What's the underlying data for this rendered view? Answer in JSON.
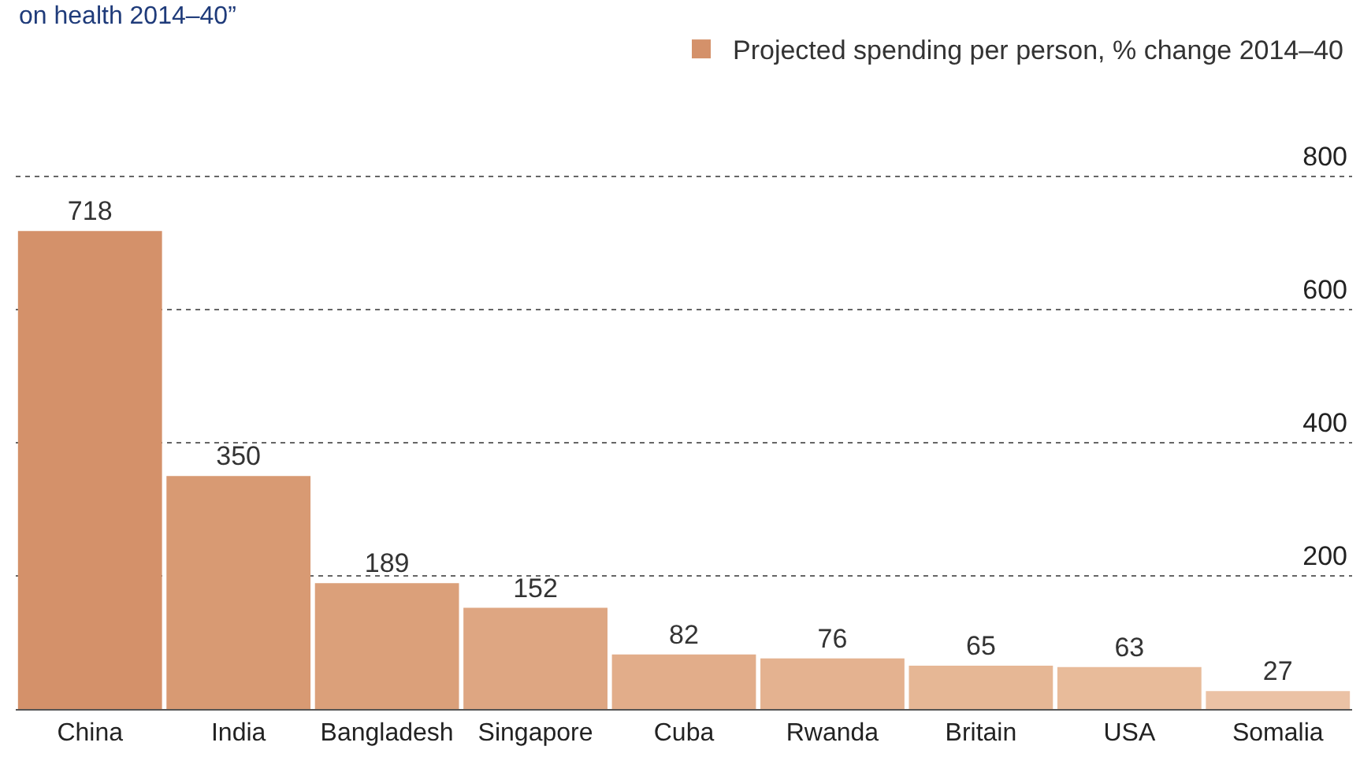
{
  "chart_data": {
    "type": "bar",
    "categories": [
      "China",
      "India",
      "Bangladesh",
      "Singapore",
      "Cuba",
      "Rwanda",
      "Britain",
      "USA",
      "Somalia"
    ],
    "series": [
      {
        "name": "Projected spending per person, % change 2014–40",
        "colors": [
          "#d4916a",
          "#d89a73",
          "#dba07a",
          "#dea682",
          "#e2ad8a",
          "#e4b290",
          "#e6b795",
          "#e8bb9a",
          "#ebc2a5"
        ],
        "values": [
          718,
          350,
          189,
          152,
          82,
          76,
          65,
          63,
          27
        ]
      }
    ],
    "ylim": [
      0,
      1065
    ],
    "yticks": [
      200,
      400,
      600,
      800
    ],
    "grid": "y",
    "data_labels": true,
    "legend": "top right",
    "annotations": [
      "on health 2014–40”"
    ]
  }
}
